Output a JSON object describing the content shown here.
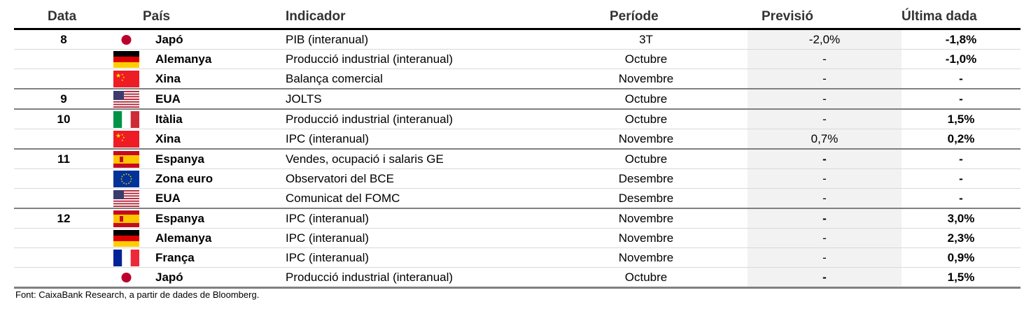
{
  "headers": {
    "date": "Data",
    "country": "País",
    "indicator": "Indicador",
    "period": "Període",
    "forecast": "Previsió",
    "last": "Última dada"
  },
  "rows": [
    {
      "date": "8",
      "flag": "japan",
      "country": "Japó",
      "indicator": "PIB (interanual)",
      "period": "3T",
      "forecast": "-2,0%",
      "forecast_bold": false,
      "last": "-1,8%"
    },
    {
      "date": "",
      "flag": "germany",
      "country": "Alemanya",
      "indicator": "Producció industrial (interanual)",
      "period": "Octubre",
      "forecast": "-",
      "forecast_bold": false,
      "last": "-1,0%"
    },
    {
      "date": "",
      "flag": "china",
      "country": "Xina",
      "indicator": "Balança comercial",
      "period": "Novembre",
      "forecast": "-",
      "forecast_bold": false,
      "last": "-"
    },
    {
      "date": "9",
      "flag": "usa",
      "country": "EUA",
      "indicator": "JOLTS",
      "period": "Octubre",
      "forecast": "-",
      "forecast_bold": false,
      "last": "-"
    },
    {
      "date": "10",
      "flag": "italy",
      "country": "Itàlia",
      "indicator": "Producció industrial (interanual)",
      "period": "Octubre",
      "forecast": "-",
      "forecast_bold": false,
      "last": "1,5%"
    },
    {
      "date": "",
      "flag": "china",
      "country": "Xina",
      "indicator": "IPC (interanual)",
      "period": "Novembre",
      "forecast": "0,7%",
      "forecast_bold": false,
      "last": "0,2%"
    },
    {
      "date": "11",
      "flag": "spain",
      "country": "Espanya",
      "indicator": "Vendes, ocupació i salaris GE",
      "period": "Octubre",
      "forecast": "-",
      "forecast_bold": true,
      "last": "-"
    },
    {
      "date": "",
      "flag": "eu",
      "country": "Zona euro",
      "indicator": "Observatori del BCE",
      "period": "Desembre",
      "forecast": "-",
      "forecast_bold": false,
      "last": "-"
    },
    {
      "date": "",
      "flag": "usa",
      "country": "EUA",
      "indicator": "Comunicat del FOMC",
      "period": "Desembre",
      "forecast": "-",
      "forecast_bold": false,
      "last": "-"
    },
    {
      "date": "12",
      "flag": "spain",
      "country": "Espanya",
      "indicator": "IPC (interanual)",
      "period": "Novembre",
      "forecast": "-",
      "forecast_bold": true,
      "last": "3,0%"
    },
    {
      "date": "",
      "flag": "germany",
      "country": "Alemanya",
      "indicator": "IPC (interanual)",
      "period": "Novembre",
      "forecast": "-",
      "forecast_bold": false,
      "last": "2,3%"
    },
    {
      "date": "",
      "flag": "france",
      "country": "França",
      "indicator": "IPC (interanual)",
      "period": "Novembre",
      "forecast": "-",
      "forecast_bold": false,
      "last": "0,9%"
    },
    {
      "date": "",
      "flag": "japan",
      "country": "Japó",
      "indicator": "Producció industrial (interanual)",
      "period": "Octubre",
      "forecast": "-",
      "forecast_bold": true,
      "last": "1,5%"
    }
  ],
  "footer": "Font: CaixaBank Research, a partir de dades de Bloomberg.",
  "colors": {
    "forecast_bg": "#f2f2f2",
    "header_text": "#333333"
  }
}
